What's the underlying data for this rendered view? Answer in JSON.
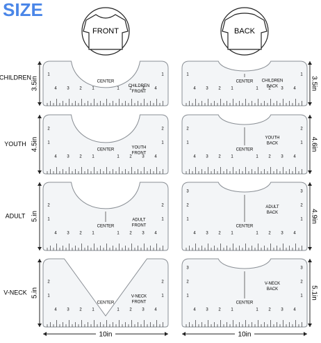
{
  "title": "SIZE",
  "columns": [
    {
      "label": "FRONT"
    },
    {
      "label": "BACK"
    }
  ],
  "rows": [
    {
      "label": "CHILDREN",
      "front_height": "3.5in",
      "back_height": "3.5in",
      "front_text": [
        "CHILDREN",
        "FRONT"
      ],
      "back_text": [
        "CHILDREN",
        "BACK"
      ]
    },
    {
      "label": "YOUTH",
      "front_height": "4.5in",
      "back_height": "4.6in",
      "front_text": [
        "YOUTH",
        "FRONT"
      ],
      "back_text": [
        "YOUTH",
        "BACK"
      ]
    },
    {
      "label": "ADULT",
      "front_height": "5.in",
      "back_height": "4.9in",
      "front_text": [
        "ADULT",
        "FRONT"
      ],
      "back_text": [
        "ADULT",
        "BACK"
      ]
    },
    {
      "label": "V-NECK",
      "front_height": "5.in",
      "back_height": "5.1in",
      "front_text": [
        "V-NECK",
        "FRONT"
      ],
      "back_text": [
        "V-NECK",
        "BACK"
      ]
    }
  ],
  "ruler": {
    "center": "CENTER",
    "numbers": [
      "1",
      "2",
      "3",
      "4"
    ]
  },
  "width_labels": [
    "10in",
    "10in"
  ]
}
